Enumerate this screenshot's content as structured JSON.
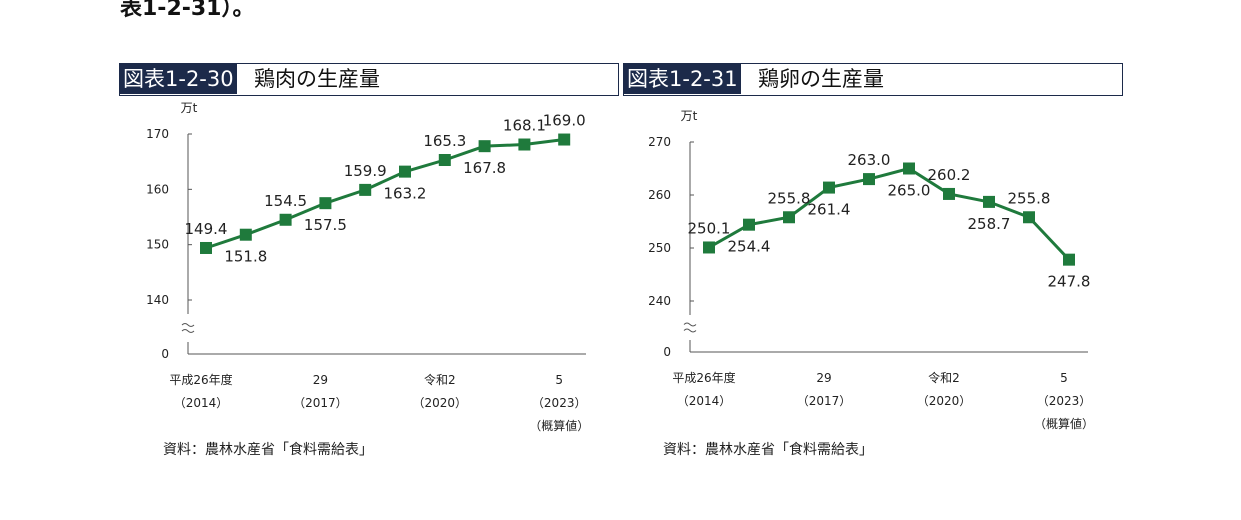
{
  "top_text": "表1-2-31）。",
  "charts": [
    {
      "badge": "図表1-2-30",
      "title": "鶏肉の生産量",
      "source": "資料：農林水産省「食料需給表」"
    },
    {
      "badge": "図表1-2-31",
      "title": "鶏卵の生産量",
      "source": "資料：農林水産省「食料需給表」"
    }
  ],
  "chart_data": [
    {
      "type": "line",
      "ylabel": "万t",
      "ylim": [
        140,
        170
      ],
      "yticks": [
        140,
        150,
        160,
        170
      ],
      "zero_label": "0",
      "axis_break": true,
      "x": [
        "2014",
        "2015",
        "2016",
        "2017",
        "2018",
        "2019",
        "2020",
        "2021",
        "2022",
        "2023"
      ],
      "values": [
        149.4,
        151.8,
        154.5,
        157.5,
        159.9,
        163.2,
        165.3,
        167.8,
        168.1,
        169.0
      ],
      "value_labels": [
        "149.4",
        "151.8",
        "154.5",
        "157.5",
        "159.9",
        "163.2",
        "165.3",
        "167.8",
        "168.1",
        "169.0"
      ],
      "label_positions": [
        "above",
        "below",
        "above",
        "below",
        "above",
        "below",
        "above",
        "below",
        "above",
        "above"
      ],
      "x_tick_labels": [
        {
          "index": 0,
          "lines": [
            "平成26年度",
            "（2014）"
          ]
        },
        {
          "index": 3,
          "lines": [
            "29",
            "（2017）"
          ]
        },
        {
          "index": 6,
          "lines": [
            "令和2",
            "（2020）"
          ]
        },
        {
          "index": 9,
          "lines": [
            "5",
            "（2023）",
            "（概算値）"
          ]
        }
      ],
      "color": "#1f7a3c"
    },
    {
      "type": "line",
      "ylabel": "万t",
      "ylim": [
        240,
        270
      ],
      "yticks": [
        240,
        250,
        260,
        270
      ],
      "zero_label": "0",
      "axis_break": true,
      "x": [
        "2014",
        "2015",
        "2016",
        "2017",
        "2018",
        "2019",
        "2020",
        "2021",
        "2022",
        "2023"
      ],
      "values": [
        250.1,
        254.4,
        255.8,
        261.4,
        263.0,
        265.0,
        260.2,
        258.7,
        255.8,
        247.8
      ],
      "value_labels": [
        "250.1",
        "254.4",
        "255.8",
        "261.4",
        "263.0",
        "265.0",
        "260.2",
        "258.7",
        "255.8",
        "247.8"
      ],
      "label_positions": [
        "above",
        "below",
        "above",
        "below",
        "above",
        "below",
        "above",
        "below",
        "above",
        "below"
      ],
      "x_tick_labels": [
        {
          "index": 0,
          "lines": [
            "平成26年度",
            "（2014）"
          ]
        },
        {
          "index": 3,
          "lines": [
            "29",
            "（2017）"
          ]
        },
        {
          "index": 6,
          "lines": [
            "令和2",
            "（2020）"
          ]
        },
        {
          "index": 9,
          "lines": [
            "5",
            "（2023）",
            "（概算値）"
          ]
        }
      ],
      "color": "#1f7a3c"
    }
  ]
}
